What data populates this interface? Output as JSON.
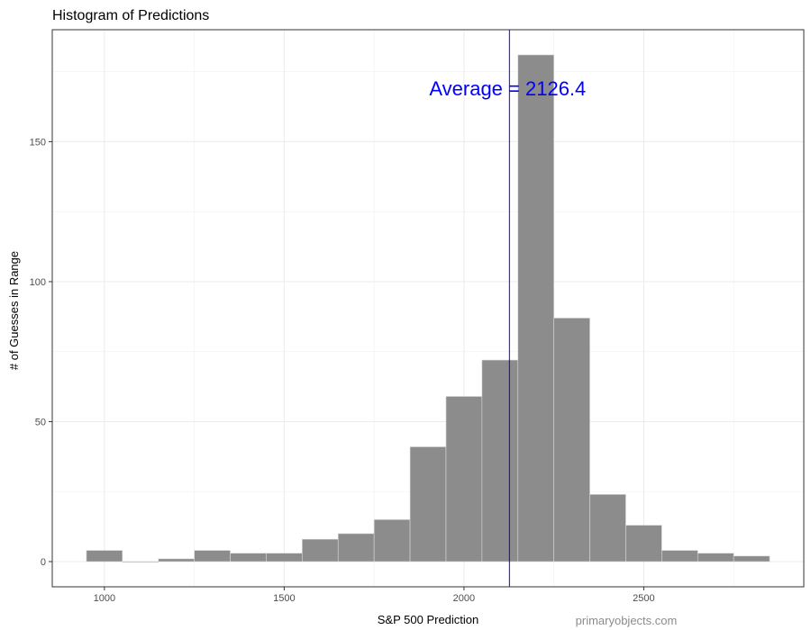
{
  "chart_data": {
    "type": "bar",
    "title": "Histogram of Predictions",
    "xlabel": "S&P 500 Prediction",
    "ylabel": "# of Guesses in Range",
    "bin_width": 100,
    "bins": [
      {
        "start": 950,
        "end": 1050,
        "count": 4
      },
      {
        "start": 1050,
        "end": 1150,
        "count": 0
      },
      {
        "start": 1150,
        "end": 1250,
        "count": 1
      },
      {
        "start": 1250,
        "end": 1350,
        "count": 4
      },
      {
        "start": 1350,
        "end": 1450,
        "count": 3
      },
      {
        "start": 1450,
        "end": 1550,
        "count": 3
      },
      {
        "start": 1550,
        "end": 1650,
        "count": 8
      },
      {
        "start": 1650,
        "end": 1750,
        "count": 10
      },
      {
        "start": 1750,
        "end": 1850,
        "count": 15
      },
      {
        "start": 1850,
        "end": 1950,
        "count": 41
      },
      {
        "start": 1950,
        "end": 2050,
        "count": 59
      },
      {
        "start": 2050,
        "end": 2150,
        "count": 72
      },
      {
        "start": 2150,
        "end": 2250,
        "count": 181
      },
      {
        "start": 2250,
        "end": 2350,
        "count": 87
      },
      {
        "start": 2350,
        "end": 2450,
        "count": 24
      },
      {
        "start": 2450,
        "end": 2550,
        "count": 13
      },
      {
        "start": 2550,
        "end": 2650,
        "count": 4
      },
      {
        "start": 2650,
        "end": 2750,
        "count": 3
      },
      {
        "start": 2750,
        "end": 2850,
        "count": 2
      }
    ],
    "xlim": [
      855,
      2945
    ],
    "ylim": [
      -9,
      190
    ],
    "x_ticks": [
      1000,
      1500,
      2000,
      2500
    ],
    "y_ticks": [
      0,
      50,
      100,
      150
    ],
    "grid": true,
    "average": {
      "value": 2126.4,
      "label": "Average = 2126.4",
      "color": "#0000ff"
    },
    "bar_fill": "#8c8c8c",
    "bar_outline": "#d9d9d9"
  },
  "watermark": "primaryobjects.com"
}
